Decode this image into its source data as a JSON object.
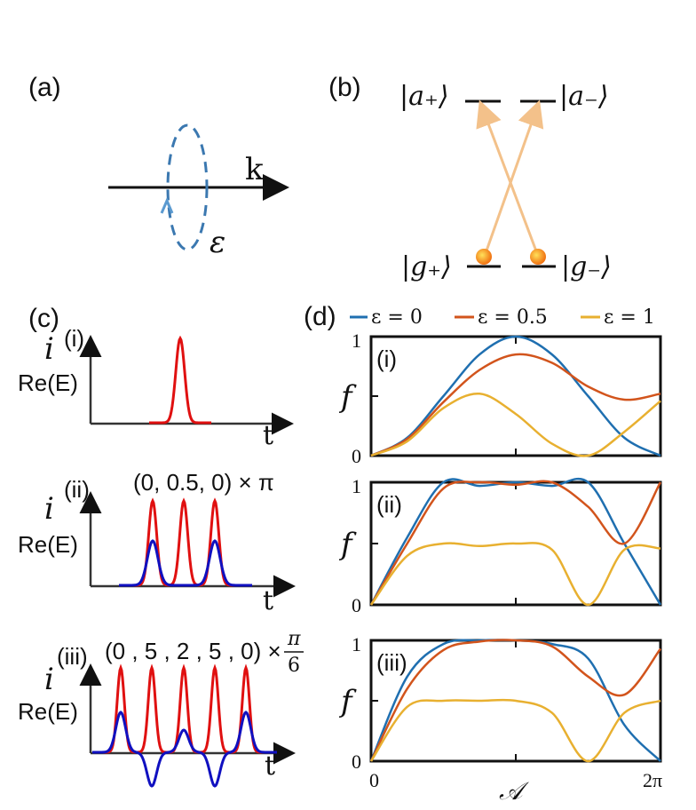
{
  "figure": {
    "panel_a": {
      "label": "(a)",
      "k_label": "k",
      "eps_label": "ε"
    },
    "panel_b": {
      "label": "(b)",
      "levels": {
        "a_plus": "|a₊⟩",
        "a_minus": "|a₋⟩",
        "g_plus": "|g₊⟩",
        "g_minus": "|g₋⟩"
      },
      "colors": {
        "arrow": "#f3c18a",
        "atom": "#f28a10"
      }
    },
    "panel_c": {
      "label": "(c)",
      "i_label": "i",
      "re_label": "Re(E)",
      "t_label": "t",
      "sub": [
        {
          "label": "(i)",
          "params": "",
          "params_frac": ""
        },
        {
          "label": "(ii)",
          "params": "(0, 0.5, 0) × π",
          "params_frac": ""
        },
        {
          "label": "(iii)",
          "params": "(0 , 5 , 2 , 5 , 0) × ",
          "params_frac_num": "π",
          "params_frac_den": "6"
        }
      ],
      "colors": {
        "i": "#e01010",
        "re": "#1010c0"
      }
    },
    "panel_d": {
      "label": "(d)",
      "ylabel": "f",
      "xlabel": "𝒜",
      "xticks": [
        "0",
        "2π"
      ],
      "yticks": [
        "0",
        "1"
      ],
      "sub": [
        "(i)",
        "(ii)",
        "(iii)"
      ],
      "legend": [
        {
          "name": "ε = 0",
          "color": "#1f6fb0"
        },
        {
          "name": "ε = 0.5",
          "color": "#d2541c"
        },
        {
          "name": "ε = 1",
          "color": "#e8b030"
        }
      ]
    }
  },
  "chart_data": [
    {
      "type": "line",
      "subplot": "(i)",
      "xlim": [
        0,
        6.2832
      ],
      "ylim": [
        0,
        1
      ],
      "series": [
        {
          "name": "ε = 0",
          "x": [
            0,
            0.785,
            1.571,
            2.356,
            3.142,
            3.927,
            4.712,
            5.498,
            6.283
          ],
          "y": [
            0,
            0.15,
            0.5,
            0.85,
            1.0,
            0.85,
            0.5,
            0.15,
            0
          ]
        },
        {
          "name": "ε = 0.5",
          "x": [
            0,
            0.785,
            1.571,
            2.356,
            3.142,
            3.927,
            4.712,
            5.498,
            6.283
          ],
          "y": [
            0,
            0.14,
            0.45,
            0.72,
            0.85,
            0.78,
            0.58,
            0.47,
            0.52
          ]
        },
        {
          "name": "ε = 1",
          "x": [
            0,
            0.785,
            1.571,
            2.356,
            3.142,
            3.927,
            4.712,
            5.498,
            6.283
          ],
          "y": [
            0,
            0.12,
            0.4,
            0.52,
            0.35,
            0.1,
            0.0,
            0.2,
            0.46
          ]
        }
      ]
    },
    {
      "type": "line",
      "subplot": "(ii)",
      "xlim": [
        0,
        6.2832
      ],
      "ylim": [
        0,
        1
      ],
      "series": [
        {
          "name": "ε = 0",
          "x": [
            0,
            0.785,
            1.571,
            2.356,
            3.142,
            3.927,
            4.712,
            5.498,
            6.283
          ],
          "y": [
            0,
            0.55,
            1.0,
            0.97,
            1.0,
            0.97,
            1.0,
            0.5,
            0
          ]
        },
        {
          "name": "ε = 0.5",
          "x": [
            0,
            0.785,
            1.571,
            2.356,
            3.142,
            3.927,
            4.712,
            5.498,
            6.283
          ],
          "y": [
            0,
            0.5,
            0.95,
            1.0,
            0.98,
            1.0,
            0.8,
            0.5,
            1.0
          ]
        },
        {
          "name": "ε = 1",
          "x": [
            0,
            0.785,
            1.571,
            2.356,
            3.142,
            3.927,
            4.712,
            5.498,
            6.283
          ],
          "y": [
            0,
            0.4,
            0.5,
            0.48,
            0.5,
            0.45,
            0.0,
            0.45,
            0.46
          ]
        }
      ]
    },
    {
      "type": "line",
      "subplot": "(iii)",
      "xlim": [
        0,
        6.2832
      ],
      "ylim": [
        0,
        1
      ],
      "series": [
        {
          "name": "ε = 0",
          "x": [
            0,
            0.785,
            1.571,
            2.356,
            3.142,
            3.927,
            4.712,
            5.498,
            6.283
          ],
          "y": [
            0,
            0.7,
            0.97,
            1.0,
            1.0,
            0.97,
            0.85,
            0.3,
            0
          ]
        },
        {
          "name": "ε = 0.5",
          "x": [
            0,
            0.785,
            1.571,
            2.356,
            3.142,
            3.927,
            4.712,
            5.498,
            6.283
          ],
          "y": [
            0,
            0.6,
            0.92,
            0.99,
            1.0,
            0.95,
            0.7,
            0.55,
            0.93
          ]
        },
        {
          "name": "ε = 1",
          "x": [
            0,
            0.785,
            1.571,
            2.356,
            3.142,
            3.927,
            4.712,
            5.498,
            6.283
          ],
          "y": [
            0,
            0.45,
            0.5,
            0.5,
            0.5,
            0.4,
            0.0,
            0.4,
            0.5
          ]
        }
      ]
    }
  ]
}
